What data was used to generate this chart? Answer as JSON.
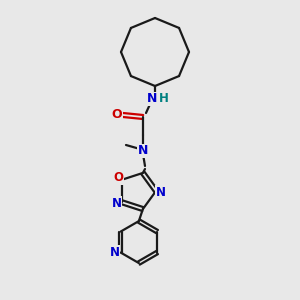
{
  "bg_color": "#e8e8e8",
  "bond_color": "#1a1a1a",
  "N_color": "#0000cc",
  "O_color": "#cc0000",
  "H_color": "#008080",
  "line_width": 1.6,
  "fig_size": [
    3.0,
    3.0
  ],
  "dpi": 100,
  "xlim": [
    0,
    300
  ],
  "ylim": [
    0,
    300
  ]
}
